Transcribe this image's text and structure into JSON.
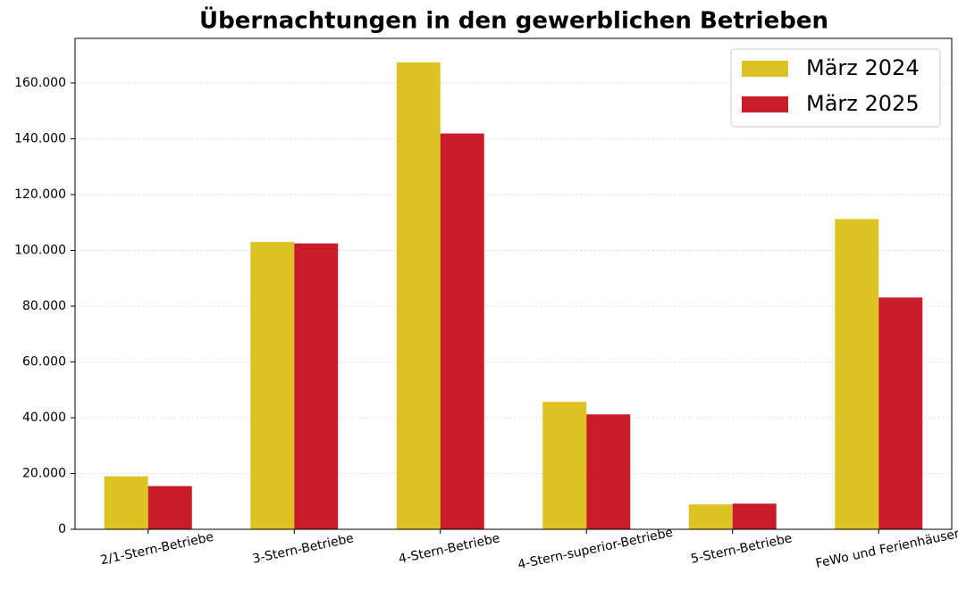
{
  "chart_data": {
    "type": "bar",
    "title": "Übernachtungen in den gewerblichen Betrieben",
    "categories": [
      "2/1-Stern-Betriebe",
      "3-Stern-Betriebe",
      "4-Stern-Betriebe",
      "4-Stern-superior-Betriebe",
      "5-Stern-Betriebe",
      "FeWo und Ferienhäuser"
    ],
    "series": [
      {
        "name": "März 2024",
        "color": "#dcc323",
        "values": [
          19000,
          103000,
          167400,
          45700,
          8900,
          111200
        ]
      },
      {
        "name": "März 2025",
        "color": "#c81c28",
        "values": [
          15500,
          102500,
          141900,
          41200,
          9200,
          83100
        ]
      }
    ],
    "ylim": [
      0,
      176000
    ],
    "yticks": [
      0,
      {
        "value": 20000,
        "label": "20.000"
      },
      {
        "value": 40000,
        "label": "40.000"
      },
      {
        "value": 60000,
        "label": "60.000"
      },
      {
        "value": 80000,
        "label": "80.000"
      },
      {
        "value": 100000,
        "label": "100.000"
      },
      {
        "value": 120000,
        "label": "120.000"
      },
      {
        "value": 140000,
        "label": "140.000"
      },
      {
        "value": 160000,
        "label": "160.000"
      }
    ],
    "grid": true,
    "legend": "upper right"
  }
}
